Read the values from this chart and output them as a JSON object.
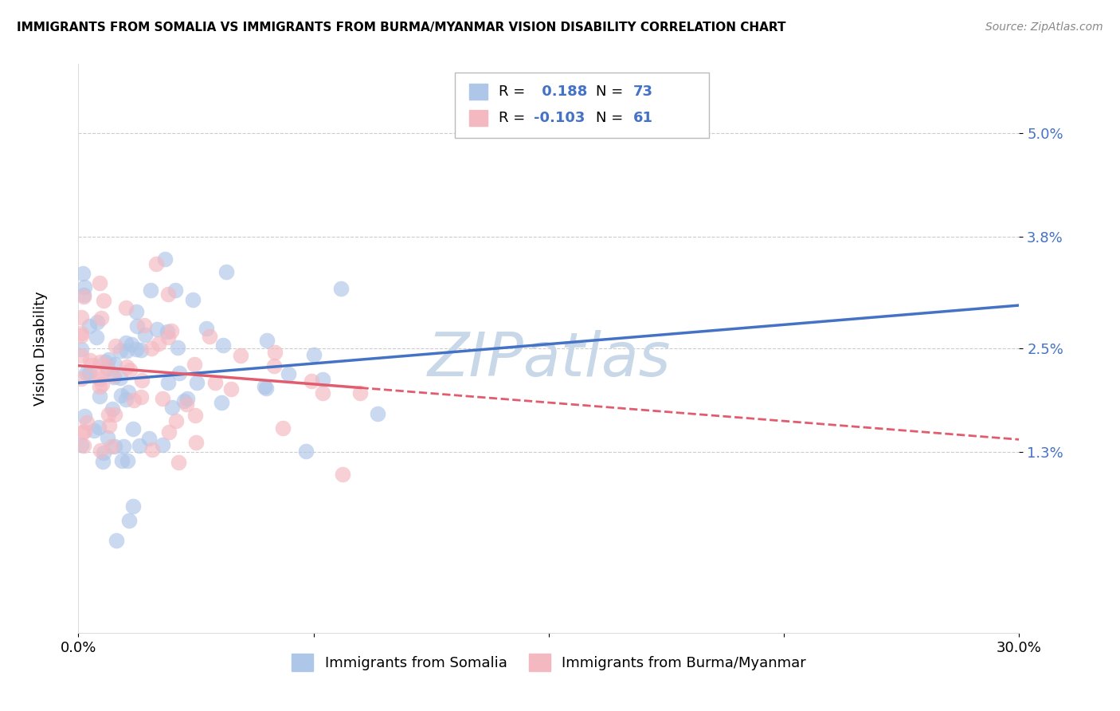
{
  "title": "IMMIGRANTS FROM SOMALIA VS IMMIGRANTS FROM BURMA/MYANMAR VISION DISABILITY CORRELATION CHART",
  "source": "Source: ZipAtlas.com",
  "ylabel": "Vision Disability",
  "xlim": [
    0.0,
    0.3
  ],
  "ylim": [
    -0.008,
    0.058
  ],
  "yticks": [
    0.013,
    0.025,
    0.038,
    0.05
  ],
  "ytick_labels": [
    "1.3%",
    "2.5%",
    "3.8%",
    "5.0%"
  ],
  "xticks": [
    0.0,
    0.075,
    0.15,
    0.225,
    0.3
  ],
  "xtick_labels": [
    "0.0%",
    "",
    "",
    "",
    "30.0%"
  ],
  "somalia_R": 0.188,
  "somalia_N": 73,
  "burma_R": -0.103,
  "burma_N": 61,
  "somalia_color": "#aec6e8",
  "burma_color": "#f4b8c1",
  "somalia_line_color": "#4472c4",
  "burma_line_color": "#e05c6e",
  "watermark": "ZIPatlas",
  "watermark_color": "#c8d8e8",
  "legend_somalia_label": "Immigrants from Somalia",
  "legend_burma_label": "Immigrants from Burma/Myanmar"
}
